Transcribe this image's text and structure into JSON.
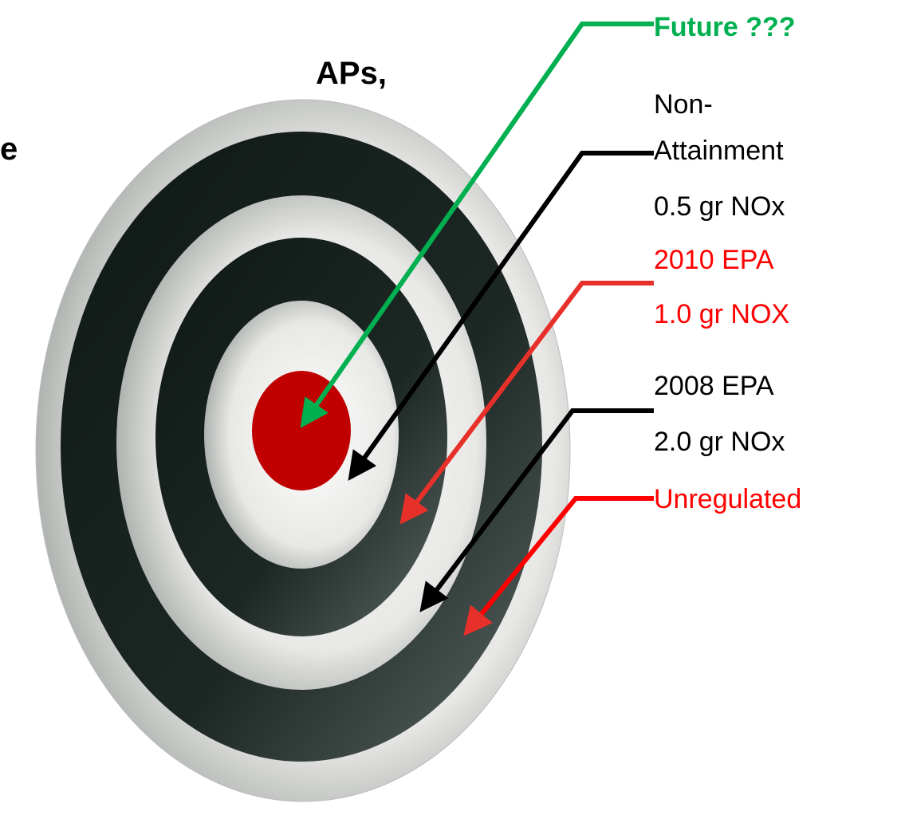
{
  "fragments": [
    "APs,",
    "e"
  ],
  "labels": [
    "Future ???",
    "Non-",
    "Attainment",
    "0.5 gr NOx",
    "2010 EPA",
    "1.0 gr NOX",
    "2008 EPA",
    "2.0 gr NOx",
    "Unregulated"
  ]
}
